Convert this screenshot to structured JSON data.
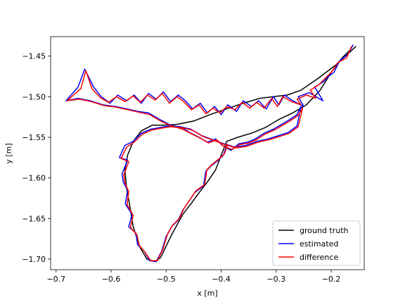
{
  "chart_data": {
    "type": "line",
    "title": "",
    "xlabel": "x [m]",
    "ylabel": "y [m]",
    "xlim": [
      -0.71,
      -0.14
    ],
    "ylim": [
      -1.713,
      -1.426
    ],
    "xticks": [
      -0.7,
      -0.6,
      -0.5,
      -0.4,
      -0.3,
      -0.2
    ],
    "xtick_labels": [
      "−0.7",
      "−0.6",
      "−0.5",
      "−0.4",
      "−0.3",
      "−0.2"
    ],
    "yticks": [
      -1.45,
      -1.5,
      -1.55,
      -1.6,
      -1.65,
      -1.7
    ],
    "ytick_labels": [
      "−1.45",
      "−1.50",
      "−1.55",
      "−1.60",
      "−1.65",
      "−1.70"
    ],
    "grid": false,
    "legend_position": "lower-right",
    "series": [
      {
        "name": "ground truth",
        "color": "#000000",
        "points": [
          [
            -0.155,
            -1.438
          ],
          [
            -0.19,
            -1.46
          ],
          [
            -0.225,
            -1.478
          ],
          [
            -0.255,
            -1.492
          ],
          [
            -0.28,
            -1.498
          ],
          [
            -0.305,
            -1.5
          ],
          [
            -0.33,
            -1.502
          ],
          [
            -0.36,
            -1.508
          ],
          [
            -0.39,
            -1.515
          ],
          [
            -0.42,
            -1.522
          ],
          [
            -0.45,
            -1.53
          ],
          [
            -0.48,
            -1.534
          ],
          [
            -0.505,
            -1.535
          ],
          [
            -0.525,
            -1.535
          ],
          [
            -0.545,
            -1.542
          ],
          [
            -0.56,
            -1.555
          ],
          [
            -0.57,
            -1.572
          ],
          [
            -0.575,
            -1.59
          ],
          [
            -0.572,
            -1.612
          ],
          [
            -0.566,
            -1.635
          ],
          [
            -0.56,
            -1.66
          ],
          [
            -0.548,
            -1.685
          ],
          [
            -0.535,
            -1.7
          ],
          [
            -0.52,
            -1.703
          ],
          [
            -0.51,
            -1.698
          ],
          [
            -0.49,
            -1.67
          ],
          [
            -0.47,
            -1.645
          ],
          [
            -0.455,
            -1.632
          ],
          [
            -0.44,
            -1.618
          ],
          [
            -0.425,
            -1.605
          ],
          [
            -0.41,
            -1.59
          ],
          [
            -0.4,
            -1.572
          ],
          [
            -0.39,
            -1.555
          ],
          [
            -0.37,
            -1.55
          ],
          [
            -0.345,
            -1.545
          ],
          [
            -0.32,
            -1.538
          ],
          [
            -0.295,
            -1.528
          ],
          [
            -0.27,
            -1.52
          ],
          [
            -0.245,
            -1.51
          ],
          [
            -0.22,
            -1.492
          ],
          [
            -0.2,
            -1.47
          ],
          [
            -0.18,
            -1.452
          ],
          [
            -0.165,
            -1.442
          ]
        ]
      },
      {
        "name": "estimated",
        "color": "#0000ff",
        "points": [
          [
            -0.16,
            -1.436
          ],
          [
            -0.17,
            -1.448
          ],
          [
            -0.185,
            -1.456
          ],
          [
            -0.195,
            -1.47
          ],
          [
            -0.205,
            -1.475
          ],
          [
            -0.215,
            -1.482
          ],
          [
            -0.23,
            -1.488
          ],
          [
            -0.215,
            -1.505
          ],
          [
            -0.24,
            -1.495
          ],
          [
            -0.26,
            -1.5
          ],
          [
            -0.25,
            -1.512
          ],
          [
            -0.27,
            -1.505
          ],
          [
            -0.285,
            -1.498
          ],
          [
            -0.295,
            -1.51
          ],
          [
            -0.305,
            -1.5
          ],
          [
            -0.318,
            -1.515
          ],
          [
            -0.332,
            -1.505
          ],
          [
            -0.345,
            -1.512
          ],
          [
            -0.36,
            -1.505
          ],
          [
            -0.372,
            -1.518
          ],
          [
            -0.388,
            -1.51
          ],
          [
            -0.4,
            -1.522
          ],
          [
            -0.412,
            -1.512
          ],
          [
            -0.425,
            -1.52
          ],
          [
            -0.438,
            -1.508
          ],
          [
            -0.452,
            -1.515
          ],
          [
            -0.465,
            -1.505
          ],
          [
            -0.478,
            -1.498
          ],
          [
            -0.492,
            -1.506
          ],
          [
            -0.505,
            -1.494
          ],
          [
            -0.518,
            -1.503
          ],
          [
            -0.532,
            -1.496
          ],
          [
            -0.545,
            -1.508
          ],
          [
            -0.558,
            -1.498
          ],
          [
            -0.572,
            -1.505
          ],
          [
            -0.588,
            -1.498
          ],
          [
            -0.602,
            -1.508
          ],
          [
            -0.618,
            -1.5
          ],
          [
            -0.632,
            -1.488
          ],
          [
            -0.648,
            -1.466
          ],
          [
            -0.66,
            -1.488
          ],
          [
            -0.682,
            -1.505
          ],
          [
            -0.66,
            -1.502
          ],
          [
            -0.638,
            -1.505
          ],
          [
            -0.615,
            -1.51
          ],
          [
            -0.592,
            -1.512
          ],
          [
            -0.572,
            -1.515
          ],
          [
            -0.552,
            -1.518
          ],
          [
            -0.532,
            -1.52
          ],
          [
            -0.512,
            -1.528
          ],
          [
            -0.492,
            -1.535
          ],
          [
            -0.472,
            -1.538
          ],
          [
            -0.455,
            -1.545
          ],
          [
            -0.44,
            -1.55
          ],
          [
            -0.425,
            -1.556
          ],
          [
            -0.41,
            -1.552
          ],
          [
            -0.398,
            -1.56
          ],
          [
            -0.382,
            -1.566
          ],
          [
            -0.368,
            -1.558
          ],
          [
            -0.352,
            -1.556
          ],
          [
            -0.338,
            -1.552
          ],
          [
            -0.322,
            -1.545
          ],
          [
            -0.305,
            -1.54
          ],
          [
            -0.29,
            -1.534
          ],
          [
            -0.275,
            -1.528
          ],
          [
            -0.262,
            -1.522
          ],
          [
            -0.255,
            -1.512
          ],
          [
            -0.262,
            -1.536
          ],
          [
            -0.278,
            -1.544
          ],
          [
            -0.296,
            -1.548
          ],
          [
            -0.315,
            -1.552
          ],
          [
            -0.335,
            -1.555
          ],
          [
            -0.355,
            -1.56
          ],
          [
            -0.375,
            -1.562
          ],
          [
            -0.395,
            -1.558
          ],
          [
            -0.415,
            -1.553
          ],
          [
            -0.435,
            -1.548
          ],
          [
            -0.455,
            -1.54
          ],
          [
            -0.475,
            -1.537
          ],
          [
            -0.495,
            -1.536
          ],
          [
            -0.512,
            -1.538
          ],
          [
            -0.528,
            -1.54
          ],
          [
            -0.545,
            -1.545
          ],
          [
            -0.56,
            -1.555
          ],
          [
            -0.575,
            -1.56
          ],
          [
            -0.585,
            -1.575
          ],
          [
            -0.57,
            -1.578
          ],
          [
            -0.58,
            -1.595
          ],
          [
            -0.578,
            -1.605
          ],
          [
            -0.57,
            -1.615
          ],
          [
            -0.574,
            -1.632
          ],
          [
            -0.562,
            -1.645
          ],
          [
            -0.568,
            -1.66
          ],
          [
            -0.555,
            -1.668
          ],
          [
            -0.552,
            -1.682
          ],
          [
            -0.54,
            -1.69
          ],
          [
            -0.53,
            -1.702
          ],
          [
            -0.518,
            -1.703
          ],
          [
            -0.508,
            -1.69
          ],
          [
            -0.5,
            -1.672
          ],
          [
            -0.49,
            -1.66
          ],
          [
            -0.478,
            -1.652
          ],
          [
            -0.47,
            -1.64
          ],
          [
            -0.458,
            -1.628
          ],
          [
            -0.448,
            -1.618
          ],
          [
            -0.432,
            -1.61
          ],
          [
            -0.428,
            -1.592
          ],
          [
            -0.418,
            -1.585
          ],
          [
            -0.405,
            -1.578
          ],
          [
            -0.396,
            -1.572
          ],
          [
            -0.39,
            -1.56
          ]
        ]
      },
      {
        "name": "difference",
        "color": "#ff0000",
        "points": [
          [
            -0.163,
            -1.438
          ],
          [
            -0.172,
            -1.452
          ],
          [
            -0.188,
            -1.458
          ],
          [
            -0.2,
            -1.47
          ],
          [
            -0.212,
            -1.478
          ],
          [
            -0.222,
            -1.485
          ],
          [
            -0.238,
            -1.492
          ],
          [
            -0.228,
            -1.502
          ],
          [
            -0.245,
            -1.498
          ],
          [
            -0.262,
            -1.503
          ],
          [
            -0.255,
            -1.51
          ],
          [
            -0.272,
            -1.506
          ],
          [
            -0.288,
            -1.5
          ],
          [
            -0.298,
            -1.512
          ],
          [
            -0.308,
            -1.502
          ],
          [
            -0.322,
            -1.514
          ],
          [
            -0.335,
            -1.507
          ],
          [
            -0.348,
            -1.514
          ],
          [
            -0.362,
            -1.507
          ],
          [
            -0.375,
            -1.516
          ],
          [
            -0.39,
            -1.512
          ],
          [
            -0.402,
            -1.52
          ],
          [
            -0.415,
            -1.514
          ],
          [
            -0.428,
            -1.521
          ],
          [
            -0.44,
            -1.51
          ],
          [
            -0.454,
            -1.516
          ],
          [
            -0.468,
            -1.506
          ],
          [
            -0.48,
            -1.5
          ],
          [
            -0.494,
            -1.508
          ],
          [
            -0.507,
            -1.496
          ],
          [
            -0.52,
            -1.504
          ],
          [
            -0.534,
            -1.498
          ],
          [
            -0.547,
            -1.507
          ],
          [
            -0.56,
            -1.499
          ],
          [
            -0.575,
            -1.506
          ],
          [
            -0.59,
            -1.5
          ],
          [
            -0.605,
            -1.507
          ],
          [
            -0.62,
            -1.501
          ],
          [
            -0.635,
            -1.49
          ],
          [
            -0.646,
            -1.468
          ],
          [
            -0.655,
            -1.49
          ],
          [
            -0.68,
            -1.505
          ],
          [
            -0.658,
            -1.503
          ],
          [
            -0.636,
            -1.506
          ],
          [
            -0.613,
            -1.511
          ],
          [
            -0.59,
            -1.513
          ],
          [
            -0.57,
            -1.516
          ],
          [
            -0.55,
            -1.519
          ],
          [
            -0.53,
            -1.522
          ],
          [
            -0.51,
            -1.53
          ],
          [
            -0.49,
            -1.536
          ],
          [
            -0.47,
            -1.54
          ],
          [
            -0.453,
            -1.546
          ],
          [
            -0.438,
            -1.551
          ],
          [
            -0.423,
            -1.557
          ],
          [
            -0.408,
            -1.553
          ],
          [
            -0.396,
            -1.561
          ],
          [
            -0.38,
            -1.565
          ],
          [
            -0.366,
            -1.559
          ],
          [
            -0.35,
            -1.557
          ],
          [
            -0.336,
            -1.553
          ],
          [
            -0.32,
            -1.546
          ],
          [
            -0.303,
            -1.541
          ],
          [
            -0.288,
            -1.535
          ],
          [
            -0.273,
            -1.529
          ],
          [
            -0.26,
            -1.523
          ],
          [
            -0.252,
            -1.514
          ],
          [
            -0.26,
            -1.537
          ],
          [
            -0.276,
            -1.545
          ],
          [
            -0.294,
            -1.549
          ],
          [
            -0.313,
            -1.553
          ],
          [
            -0.333,
            -1.556
          ],
          [
            -0.353,
            -1.561
          ],
          [
            -0.373,
            -1.563
          ],
          [
            -0.393,
            -1.559
          ],
          [
            -0.413,
            -1.554
          ],
          [
            -0.433,
            -1.549
          ],
          [
            -0.453,
            -1.541
          ],
          [
            -0.473,
            -1.538
          ],
          [
            -0.493,
            -1.537
          ],
          [
            -0.51,
            -1.539
          ],
          [
            -0.526,
            -1.541
          ],
          [
            -0.543,
            -1.546
          ],
          [
            -0.558,
            -1.556
          ],
          [
            -0.572,
            -1.562
          ],
          [
            -0.582,
            -1.576
          ],
          [
            -0.568,
            -1.58
          ],
          [
            -0.577,
            -1.596
          ],
          [
            -0.575,
            -1.606
          ],
          [
            -0.568,
            -1.617
          ],
          [
            -0.571,
            -1.633
          ],
          [
            -0.56,
            -1.646
          ],
          [
            -0.565,
            -1.661
          ],
          [
            -0.553,
            -1.67
          ],
          [
            -0.549,
            -1.683
          ],
          [
            -0.538,
            -1.692
          ],
          [
            -0.528,
            -1.702
          ],
          [
            -0.516,
            -1.702
          ],
          [
            -0.506,
            -1.688
          ],
          [
            -0.498,
            -1.67
          ],
          [
            -0.488,
            -1.658
          ],
          [
            -0.476,
            -1.65
          ],
          [
            -0.468,
            -1.638
          ],
          [
            -0.456,
            -1.626
          ],
          [
            -0.446,
            -1.616
          ],
          [
            -0.43,
            -1.608
          ],
          [
            -0.426,
            -1.59
          ],
          [
            -0.416,
            -1.583
          ],
          [
            -0.403,
            -1.576
          ],
          [
            -0.394,
            -1.57
          ],
          [
            -0.388,
            -1.558
          ]
        ]
      }
    ]
  }
}
